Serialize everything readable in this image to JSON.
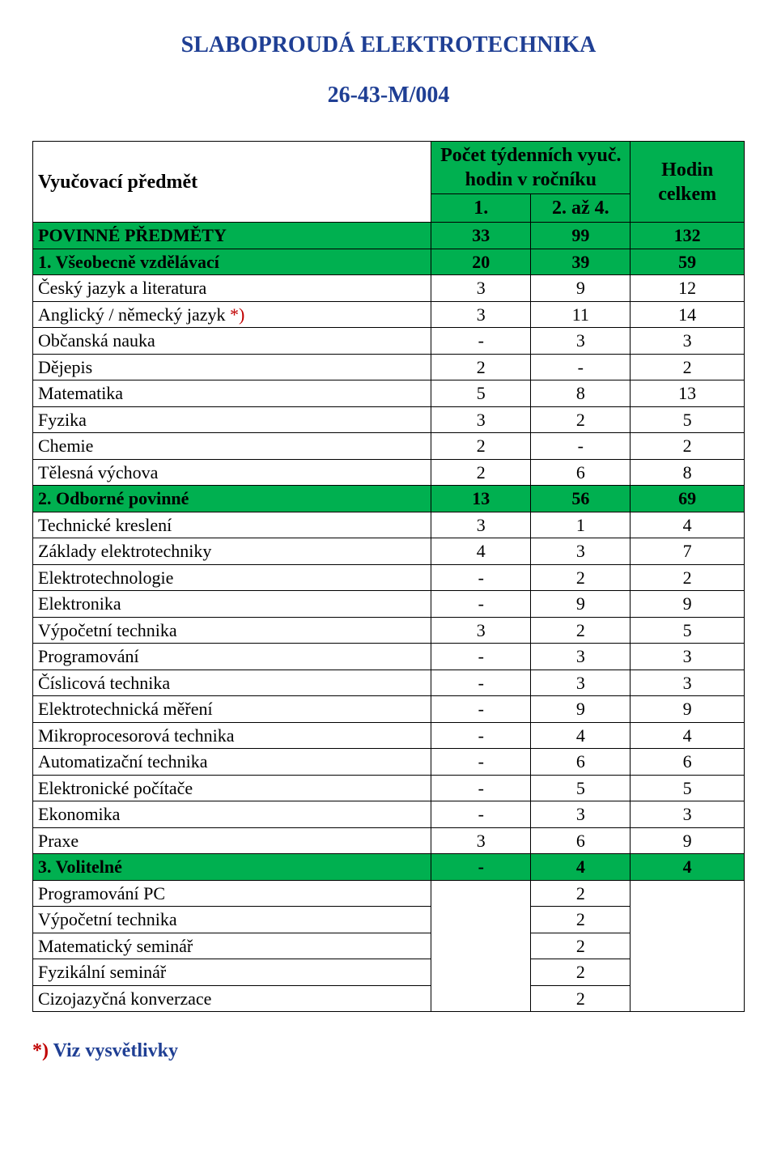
{
  "colors": {
    "title": "#1f3f94",
    "star": "#c00000",
    "header_bg": "#00b050"
  },
  "title": "SLABOPROUDÁ  ELEKTROTECHNIKA",
  "code": "26-43-M/004",
  "table": {
    "header": {
      "subject": "Vyučovací předmět",
      "hours_col": "Počet týdenních vyuč. hodin v ročníku",
      "total": "Hodin celkem",
      "c1": "1.",
      "c2": "2. až 4."
    },
    "sections": [
      {
        "label": "POVINNÉ  PŘEDMĚTY",
        "v1": "33",
        "v2": "99",
        "total": "132",
        "green": true,
        "rows": []
      },
      {
        "label": "1. Všeobecně vzdělávací",
        "v1": "20",
        "v2": "39",
        "total": "59",
        "green": true,
        "rows": [
          {
            "name": "Český jazyk a literatura",
            "v1": "3",
            "v2": "9",
            "total": "12"
          },
          {
            "name": "Anglický / německý jazyk     ",
            "star": true,
            "v1": "3",
            "v2": "11",
            "total": "14"
          },
          {
            "name": "Občanská nauka",
            "v1": "-",
            "v2": "3",
            "total": "3"
          },
          {
            "name": "Dějepis",
            "v1": "2",
            "v2": "-",
            "total": "2"
          },
          {
            "name": "Matematika",
            "v1": "5",
            "v2": "8",
            "total": "13"
          },
          {
            "name": "Fyzika",
            "v1": "3",
            "v2": "2",
            "total": "5"
          },
          {
            "name": "Chemie",
            "v1": "2",
            "v2": "-",
            "total": "2"
          },
          {
            "name": "Tělesná výchova",
            "v1": "2",
            "v2": "6",
            "total": "8"
          }
        ]
      },
      {
        "label": "2. Odborné povinné",
        "v1": "13",
        "v2": "56",
        "total": "69",
        "green": true,
        "rows": [
          {
            "name": "Technické kreslení",
            "v1": "3",
            "v2": "1",
            "total": "4"
          },
          {
            "name": "Základy elektrotechniky",
            "v1": "4",
            "v2": "3",
            "total": "7"
          },
          {
            "name": "Elektrotechnologie",
            "v1": "-",
            "v2": "2",
            "total": "2"
          },
          {
            "name": "Elektronika",
            "v1": "-",
            "v2": "9",
            "total": "9"
          },
          {
            "name": "Výpočetní technika",
            "v1": "3",
            "v2": "2",
            "total": "5"
          },
          {
            "name": "Programování",
            "v1": "-",
            "v2": "3",
            "total": "3"
          },
          {
            "name": "Číslicová technika",
            "v1": "-",
            "v2": "3",
            "total": "3"
          },
          {
            "name": "Elektrotechnická měření",
            "v1": "-",
            "v2": "9",
            "total": "9"
          },
          {
            "name": "Mikroprocesorová technika",
            "v1": "-",
            "v2": "4",
            "total": "4"
          },
          {
            "name": "Automatizační technika",
            "v1": "-",
            "v2": "6",
            "total": "6"
          },
          {
            "name": "Elektronické počítače",
            "v1": "-",
            "v2": "5",
            "total": "5"
          },
          {
            "name": "Ekonomika",
            "v1": "-",
            "v2": "3",
            "total": "3"
          },
          {
            "name": "Praxe",
            "v1": "3",
            "v2": "6",
            "total": "9"
          }
        ]
      },
      {
        "label": "3. Volitelné",
        "v1": "-",
        "v2": "4",
        "total": "4",
        "green": true,
        "rows": [
          {
            "name": "Programování PC",
            "v1": "",
            "v2": "2",
            "total": ""
          },
          {
            "name": "Výpočetní technika",
            "v1": "",
            "v2": "2",
            "total": ""
          },
          {
            "name": "Matematický seminář",
            "v1": "",
            "v2": "2",
            "total": ""
          },
          {
            "name": "Fyzikální seminář",
            "v1": "",
            "v2": "2",
            "total": ""
          },
          {
            "name": "Cizojazyčná konverzace",
            "v1": "",
            "v2": "2",
            "total": ""
          }
        ],
        "merge_v1_total": true
      }
    ]
  },
  "footnote_star": "*)",
  "footnote_text": " Viz vysvětlivky"
}
